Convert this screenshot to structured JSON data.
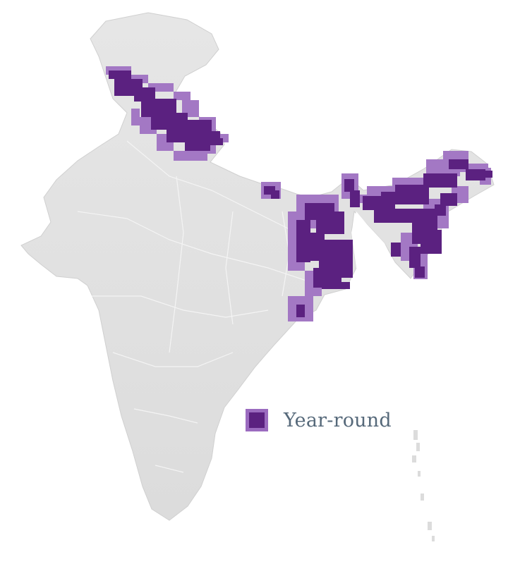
{
  "map": {
    "region": "India",
    "colors": {
      "land": "#e3e3e3",
      "land_shade": "#d4d4d4",
      "borders": "#f7f7f7",
      "range_core": "#5b2180",
      "range_edge": "#a378c4"
    }
  },
  "legend": {
    "label": "Year-round",
    "color_fill": "#5b2180",
    "color_border": "#9b6bbf"
  }
}
